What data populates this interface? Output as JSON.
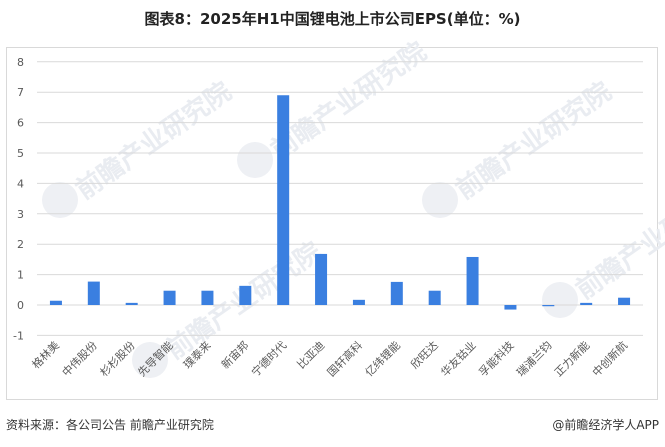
{
  "title": "图表8：2025年H1中国锂电池上市公司EPS(单位：%)",
  "footer": {
    "source": "资料来源：各公司公告 前瞻产业研究院",
    "credit": "@前瞻经济学人APP"
  },
  "watermark": "前瞻产业研究院",
  "colors": {
    "bar": "#3a7fe0",
    "grid": "#d9d9d9",
    "frame": "#d9d9d9"
  },
  "chart_data": {
    "type": "bar",
    "title": "图表8：2025年H1中国锂电池上市公司EPS(单位：%)",
    "xlabel": "",
    "ylabel": "",
    "ylim": [
      -1,
      8
    ],
    "yticks": [
      -1,
      0,
      1,
      2,
      3,
      4,
      5,
      6,
      7,
      8
    ],
    "grid": true,
    "legend": "none",
    "categories": [
      "格林美",
      "中伟股份",
      "杉杉股份",
      "先导智能",
      "璞泰来",
      "新宙邦",
      "宁德时代",
      "比亚迪",
      "国轩高科",
      "亿纬锂能",
      "欣旺达",
      "华友钴业",
      "孚能科技",
      "瑞浦兰钧",
      "正力新能",
      "中创新航"
    ],
    "series": [
      {
        "name": "EPS",
        "values": [
          0.14,
          0.77,
          0.07,
          0.47,
          0.47,
          0.63,
          6.9,
          1.68,
          0.17,
          0.76,
          0.47,
          1.58,
          -0.15,
          -0.04,
          0.07,
          0.24
        ]
      }
    ]
  }
}
